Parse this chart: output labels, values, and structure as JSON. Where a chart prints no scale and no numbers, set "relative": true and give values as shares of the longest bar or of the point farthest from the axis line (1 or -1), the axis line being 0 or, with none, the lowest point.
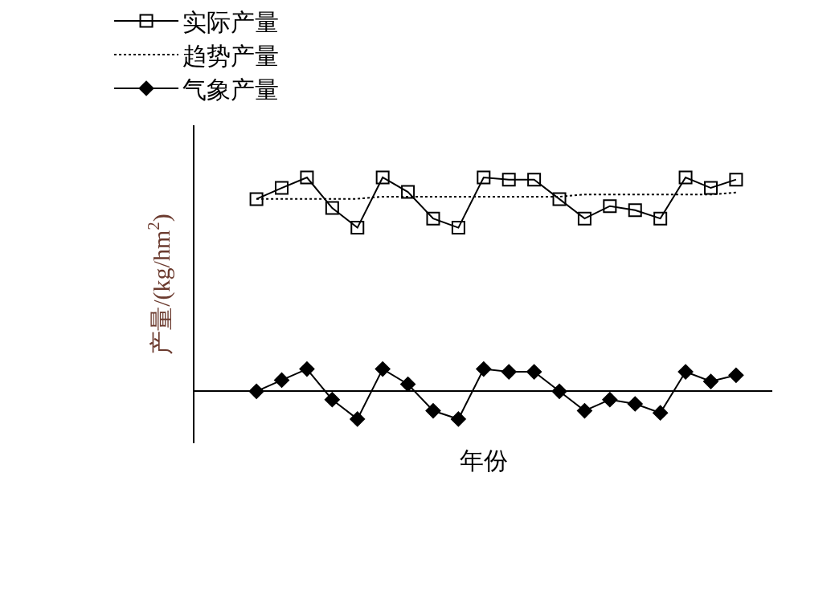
{
  "chart_data": {
    "type": "line",
    "relative": true,
    "ylabel": "产量/(kg/hm$^{2}$)",
    "xlabel": "年份",
    "categories": [
      null,
      null,
      null,
      null,
      null,
      null,
      null,
      null,
      null,
      null,
      null,
      null,
      null,
      null,
      null,
      null,
      null,
      null,
      null,
      null
    ],
    "series": [
      {
        "name": "实际产量",
        "color": "#000000",
        "marker": "square",
        "line_style": "solid",
        "values": [
          0.899,
          0.951,
          1.0,
          0.857,
          0.765,
          1.0,
          0.932,
          0.808,
          0.765,
          1.0,
          0.99,
          0.99,
          0.899,
          0.808,
          0.866,
          0.847,
          0.808,
          1.0,
          0.951,
          0.99
        ]
      },
      {
        "name": "趋势产量",
        "color": "#000000",
        "marker": "none",
        "line_style": "dotted",
        "values": [
          0.9,
          0.9,
          0.9,
          0.9,
          0.9,
          0.91,
          0.91,
          0.91,
          0.91,
          0.91,
          0.91,
          0.91,
          0.91,
          0.92,
          0.92,
          0.92,
          0.92,
          0.92,
          0.92,
          0.93
        ]
      },
      {
        "name": "气象产量",
        "color": "#000000",
        "marker": "diamond",
        "line_style": "solid",
        "values": [
          0.0,
          0.052,
          0.104,
          -0.039,
          -0.13,
          0.104,
          0.033,
          -0.091,
          -0.13,
          0.104,
          0.091,
          0.091,
          0.0,
          -0.091,
          -0.039,
          -0.059,
          -0.101,
          0.091,
          0.046,
          0.075
        ]
      }
    ],
    "legend": "top"
  }
}
